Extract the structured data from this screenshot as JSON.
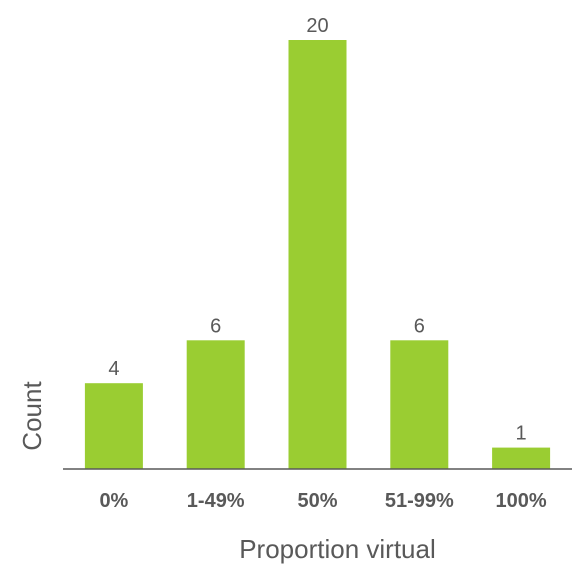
{
  "chart_data": {
    "type": "bar",
    "categories": [
      "0%",
      "1-49%",
      "50%",
      "51-99%",
      "100%"
    ],
    "values": [
      4,
      6,
      20,
      6,
      1
    ],
    "title": "",
    "xlabel": "Proportion virtual",
    "ylabel": "Count",
    "ylim": [
      0,
      20
    ],
    "grid": false,
    "legend": "none",
    "data_labels": true,
    "colors": {
      "bar": "#9ACD32",
      "text": "#595959",
      "axis": "#595959"
    }
  }
}
